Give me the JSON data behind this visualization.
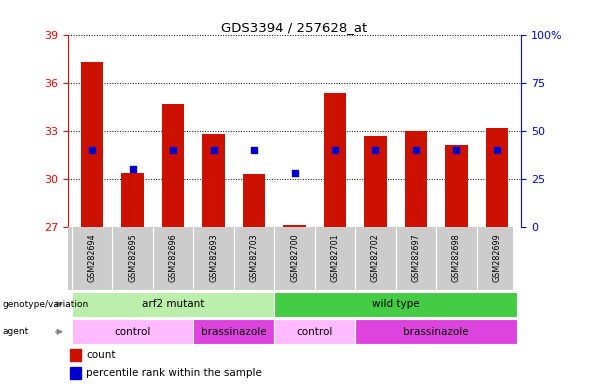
{
  "title": "GDS3394 / 257628_at",
  "samples": [
    "GSM282694",
    "GSM282695",
    "GSM282696",
    "GSM282693",
    "GSM282703",
    "GSM282700",
    "GSM282701",
    "GSM282702",
    "GSM282697",
    "GSM282698",
    "GSM282699"
  ],
  "count_values": [
    37.3,
    30.4,
    34.7,
    32.8,
    30.3,
    27.15,
    35.4,
    32.7,
    33.0,
    32.1,
    33.2
  ],
  "percentile_values": [
    40,
    30,
    40,
    40,
    40,
    28,
    40,
    40,
    40,
    40,
    40
  ],
  "y_min": 27,
  "y_max": 39,
  "y_ticks": [
    27,
    30,
    33,
    36,
    39
  ],
  "y2_ticks": [
    0,
    25,
    50,
    75,
    100
  ],
  "bar_color": "#CC1100",
  "dot_color": "#0000CC",
  "genotype_groups": [
    {
      "label": "arf2 mutant",
      "start": 0,
      "end": 5,
      "color": "#bbeeaa"
    },
    {
      "label": "wild type",
      "start": 5,
      "end": 11,
      "color": "#44cc44"
    }
  ],
  "agent_groups": [
    {
      "label": "control",
      "start": 0,
      "end": 3,
      "color": "#ffbbff"
    },
    {
      "label": "brassinazole",
      "start": 3,
      "end": 5,
      "color": "#dd44dd"
    },
    {
      "label": "control",
      "start": 5,
      "end": 7,
      "color": "#ffbbff"
    },
    {
      "label": "brassinazole",
      "start": 7,
      "end": 11,
      "color": "#dd44dd"
    }
  ],
  "genotype_label": "genotype/variation",
  "agent_label": "agent",
  "legend_count_label": "count",
  "legend_percentile_label": "percentile rank within the sample",
  "sample_bg_color": "#cccccc"
}
